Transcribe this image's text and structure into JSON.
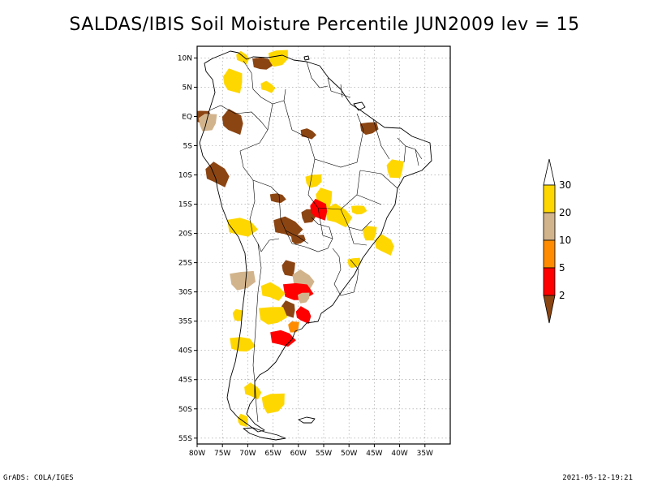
{
  "title": "SALDAS/IBIS Soil Moisture Percentile JUN2009 lev = 15",
  "footer_left": "GrADS: COLA/IGES",
  "footer_right": "2021-05-12-19:21",
  "map": {
    "lon_range": [
      -80,
      -30
    ],
    "lat_range": [
      -56,
      12
    ],
    "lat_ticks": [
      {
        "lat": 10,
        "label": "10N"
      },
      {
        "lat": 5,
        "label": "5N"
      },
      {
        "lat": 0,
        "label": "EQ"
      },
      {
        "lat": -5,
        "label": "5S"
      },
      {
        "lat": -10,
        "label": "10S"
      },
      {
        "lat": -15,
        "label": "15S"
      },
      {
        "lat": -20,
        "label": "20S"
      },
      {
        "lat": -25,
        "label": "25S"
      },
      {
        "lat": -30,
        "label": "30S"
      },
      {
        "lat": -35,
        "label": "35S"
      },
      {
        "lat": -40,
        "label": "40S"
      },
      {
        "lat": -45,
        "label": "45S"
      },
      {
        "lat": -50,
        "label": "50S"
      },
      {
        "lat": -55,
        "label": "55S"
      }
    ],
    "lon_ticks": [
      {
        "lon": -80,
        "label": "80W"
      },
      {
        "lon": -75,
        "label": "75W"
      },
      {
        "lon": -70,
        "label": "70W"
      },
      {
        "lon": -65,
        "label": "65W"
      },
      {
        "lon": -60,
        "label": "60W"
      },
      {
        "lon": -55,
        "label": "55W"
      },
      {
        "lon": -50,
        "label": "50W"
      },
      {
        "lon": -45,
        "label": "45W"
      },
      {
        "lon": -40,
        "label": "40W"
      },
      {
        "lon": -35,
        "label": "35W"
      }
    ],
    "grid": "dotted"
  },
  "colorbar": {
    "labels": [
      "2",
      "5",
      "10",
      "20",
      "30"
    ],
    "colors": {
      "below_2": "#8b4513",
      "2_5": "#ff0000",
      "5_10": "#ff8c00",
      "10_20": "#d2b48c",
      "20_30": "#ffd700",
      "above_30": "#ffffff"
    }
  },
  "patches": [
    {
      "lon": -71,
      "lat": 10,
      "category": "20_30"
    },
    {
      "lon": -67,
      "lat": 9,
      "category": "below_2"
    },
    {
      "lon": -64,
      "lat": 10,
      "category": "20_30"
    },
    {
      "lon": -73,
      "lat": 6,
      "category": "20_30"
    },
    {
      "lon": -66,
      "lat": 5,
      "category": "20_30"
    },
    {
      "lon": -79,
      "lat": 0,
      "category": "below_2"
    },
    {
      "lon": -78,
      "lat": -1,
      "category": "10_20"
    },
    {
      "lon": -73,
      "lat": -1,
      "category": "below_2"
    },
    {
      "lon": -58,
      "lat": -3,
      "category": "below_2"
    },
    {
      "lon": -46,
      "lat": -2,
      "category": "below_2"
    },
    {
      "lon": -41,
      "lat": -9,
      "category": "20_30"
    },
    {
      "lon": -76,
      "lat": -10,
      "category": "below_2"
    },
    {
      "lon": -64,
      "lat": -14,
      "category": "below_2"
    },
    {
      "lon": -57,
      "lat": -11,
      "category": "20_30"
    },
    {
      "lon": -55,
      "lat": -14,
      "category": "20_30"
    },
    {
      "lon": -52,
      "lat": -17,
      "category": "20_30"
    },
    {
      "lon": -48,
      "lat": -16,
      "category": "20_30"
    },
    {
      "lon": -58,
      "lat": -17,
      "category": "below_2"
    },
    {
      "lon": -56,
      "lat": -16,
      "category": "2_5"
    },
    {
      "lon": -62,
      "lat": -19,
      "category": "below_2"
    },
    {
      "lon": -60,
      "lat": -21,
      "category": "below_2"
    },
    {
      "lon": -46,
      "lat": -20,
      "category": "20_30"
    },
    {
      "lon": -43,
      "lat": -22,
      "category": "20_30"
    },
    {
      "lon": -71,
      "lat": -19,
      "category": "20_30"
    },
    {
      "lon": -49,
      "lat": -25,
      "category": "20_30"
    },
    {
      "lon": -62,
      "lat": -26,
      "category": "below_2"
    },
    {
      "lon": -59,
      "lat": -28,
      "category": "10_20"
    },
    {
      "lon": -60,
      "lat": -30,
      "category": "2_5"
    },
    {
      "lon": -59,
      "lat": -31,
      "category": "10_20"
    },
    {
      "lon": -62,
      "lat": -33,
      "category": "below_2"
    },
    {
      "lon": -65,
      "lat": -30,
      "category": "20_30"
    },
    {
      "lon": -65,
      "lat": -34,
      "category": "20_30"
    },
    {
      "lon": -61,
      "lat": -36,
      "category": "5_10"
    },
    {
      "lon": -59,
      "lat": -34,
      "category": "2_5"
    },
    {
      "lon": -63,
      "lat": -38,
      "category": "2_5"
    },
    {
      "lon": -71,
      "lat": -28,
      "category": "10_20"
    },
    {
      "lon": -72,
      "lat": -34,
      "category": "20_30"
    },
    {
      "lon": -69,
      "lat": -47,
      "category": "20_30"
    },
    {
      "lon": -71,
      "lat": -39,
      "category": "20_30"
    },
    {
      "lon": -65,
      "lat": -49,
      "category": "20_30"
    },
    {
      "lon": -71,
      "lat": -52,
      "category": "20_30"
    }
  ]
}
